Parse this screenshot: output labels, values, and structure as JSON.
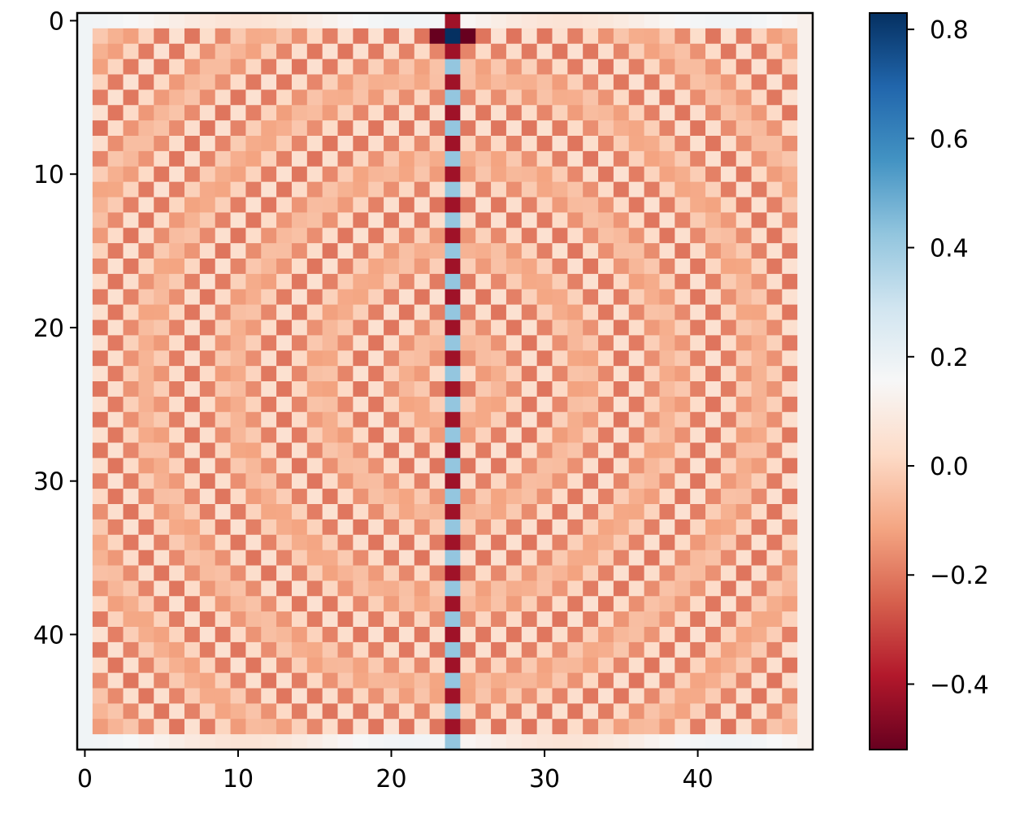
{
  "chart_data": {
    "type": "heatmap",
    "title": "",
    "xlabel": "",
    "ylabel": "",
    "grid": false,
    "rows": 48,
    "cols": 48,
    "xlim": [
      -0.5,
      47.5
    ],
    "ylim": [
      47.5,
      -0.5
    ],
    "x_ticks": [
      0,
      10,
      20,
      30,
      40
    ],
    "y_ticks": [
      0,
      10,
      20,
      30,
      40
    ],
    "x_tick_labels": [
      "0",
      "10",
      "20",
      "30",
      "40"
    ],
    "y_tick_labels": [
      "0",
      "10",
      "20",
      "30",
      "40"
    ],
    "colormap": "RdBu",
    "color_range": [
      -0.52,
      0.83
    ],
    "colorbar": {
      "placement": "right",
      "ticks": [
        -0.4,
        -0.2,
        0.0,
        0.2,
        0.4,
        0.6,
        0.8
      ],
      "tick_labels": [
        "−0.4",
        "−0.2",
        "0.0",
        "0.2",
        "0.4",
        "0.6",
        "0.8"
      ]
    },
    "pattern": {
      "description_values": "Concentric checkerboard pattern; central column 24 alternates between about 0.45 (blue) and -0.45 (red); most cells between -0.3 and 0.25",
      "center_column": 24,
      "max_value_cell": [
        1,
        24
      ],
      "max_value": 0.83,
      "min_value": -0.52
    },
    "colors": {
      "cmap_stops": [
        "#67001f",
        "#b2182b",
        "#d6604d",
        "#f4a582",
        "#fddbc7",
        "#f7f7f7",
        "#d1e5f0",
        "#92c5de",
        "#4393c3",
        "#2166ac",
        "#053061"
      ]
    }
  }
}
